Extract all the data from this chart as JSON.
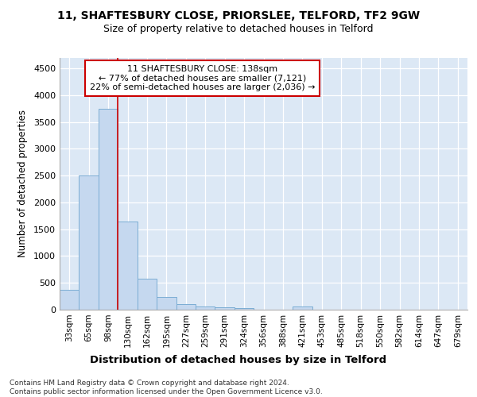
{
  "title1": "11, SHAFTESBURY CLOSE, PRIORSLEE, TELFORD, TF2 9GW",
  "title2": "Size of property relative to detached houses in Telford",
  "xlabel": "Distribution of detached houses by size in Telford",
  "ylabel": "Number of detached properties",
  "categories": [
    "33sqm",
    "65sqm",
    "98sqm",
    "130sqm",
    "162sqm",
    "195sqm",
    "227sqm",
    "259sqm",
    "291sqm",
    "324sqm",
    "356sqm",
    "388sqm",
    "421sqm",
    "453sqm",
    "485sqm",
    "518sqm",
    "550sqm",
    "582sqm",
    "614sqm",
    "647sqm",
    "679sqm"
  ],
  "values": [
    370,
    2500,
    3750,
    1640,
    580,
    230,
    110,
    65,
    40,
    30,
    0,
    0,
    60,
    0,
    0,
    0,
    0,
    0,
    0,
    0,
    0
  ],
  "bar_color": "#c5d8ef",
  "bar_edge_color": "#7badd4",
  "vline_color": "#cc0000",
  "annotation_text": "11 SHAFTESBURY CLOSE: 138sqm\n← 77% of detached houses are smaller (7,121)\n22% of semi-detached houses are larger (2,036) →",
  "annotation_box_color": "#cc0000",
  "annotation_facecolor": "white",
  "ylim": [
    0,
    4700
  ],
  "yticks": [
    0,
    500,
    1000,
    1500,
    2000,
    2500,
    3000,
    3500,
    4000,
    4500
  ],
  "footer": "Contains HM Land Registry data © Crown copyright and database right 2024.\nContains public sector information licensed under the Open Government Licence v3.0.",
  "grid_color": "#d0d8e8",
  "axes_background": "#dce8f5"
}
